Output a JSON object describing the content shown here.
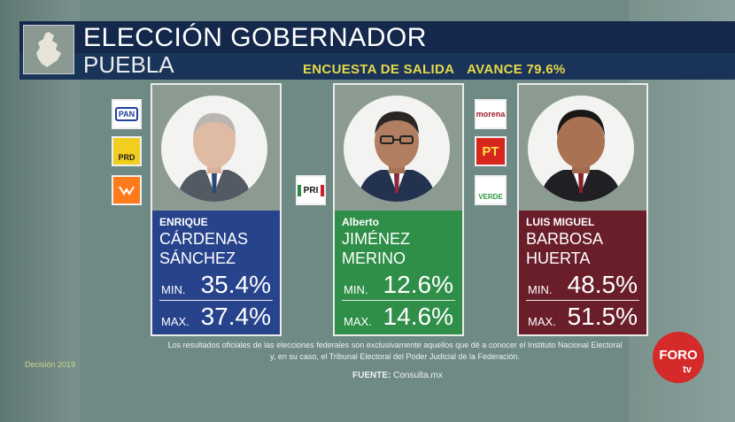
{
  "header": {
    "title": "ELECCIÓN GOBERNADOR",
    "subtitle": "PUEBLA",
    "survey_label": "ENCUESTA DE SALIDA",
    "progress_label": "AVANCE 79.6%"
  },
  "candidates": [
    {
      "first_name": "ENRIQUE",
      "last_name_1": "CÁRDENAS",
      "last_name_2": "SÁNCHEZ",
      "min_label": "MIN.",
      "min_value": "35.4%",
      "max_label": "MAX.",
      "max_value": "37.4%",
      "color": "#27438c"
    },
    {
      "first_name": "Alberto",
      "last_name_1": "JIMÉNEZ",
      "last_name_2": "MERINO",
      "min_label": "MIN.",
      "min_value": "12.6%",
      "max_label": "MAX.",
      "max_value": "14.6%",
      "color": "#2f8f48"
    },
    {
      "first_name": "LUIS MIGUEL",
      "last_name_1": "BARBOSA",
      "last_name_2": "HUERTA",
      "min_label": "MIN.",
      "min_value": "48.5%",
      "max_label": "MAX.",
      "max_value": "51.5%",
      "color": "#6a1e2a"
    }
  ],
  "party_logos": {
    "pan": "PAN",
    "prd": "PRD",
    "pri": "PRI",
    "morena": "morena",
    "pt": "PT",
    "verde": "VERDE"
  },
  "footer": {
    "disclaimer_line1": "Los resultados oficiales de las elecciones federales son exclusivamente aquellos que dé a conocer el Instituto Nacional Electoral",
    "disclaimer_line2": "y, en su caso, el Tribunal Electoral del Poder Judicial de la Federación.",
    "source_label": "FUENTE:",
    "source_value": "Consulta.mx",
    "decision": "Decisión 2019"
  },
  "brand": {
    "foro": "FORO",
    "tv": "tv"
  },
  "icons": [
    "puebla-map-icon",
    "pan-logo-icon",
    "prd-logo-icon",
    "mc-logo-icon",
    "pri-logo-icon",
    "morena-logo-icon",
    "pt-logo-icon",
    "verde-logo-icon",
    "foro-tv-logo-icon"
  ]
}
